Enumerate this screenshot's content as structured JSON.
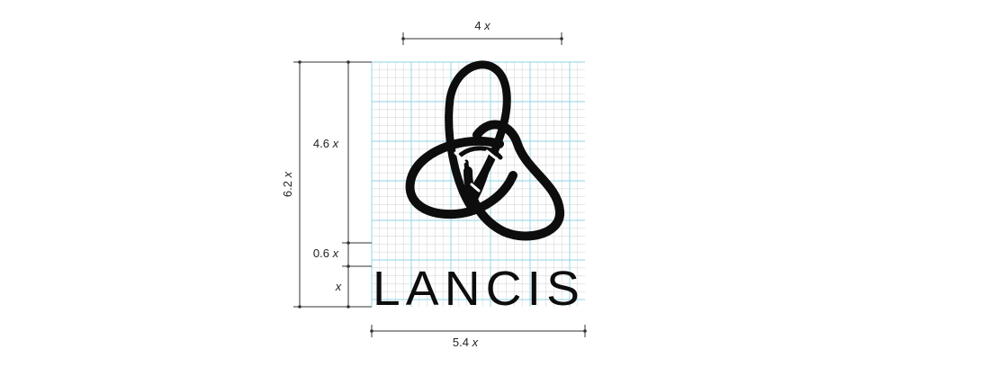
{
  "diagram": {
    "brand_name": "LANCIS",
    "dimensions": {
      "top_width": "4",
      "total_width": "5.4",
      "total_height": "6.2",
      "symbol_height": "4.6",
      "gap_height": "0.6",
      "text_height": "",
      "unit": "x"
    },
    "colors": {
      "grid_major": "#8fd3e6",
      "grid_minor": "#d9d9d9",
      "logo": "#0d0d0d",
      "dimension_line": "#333333"
    }
  }
}
